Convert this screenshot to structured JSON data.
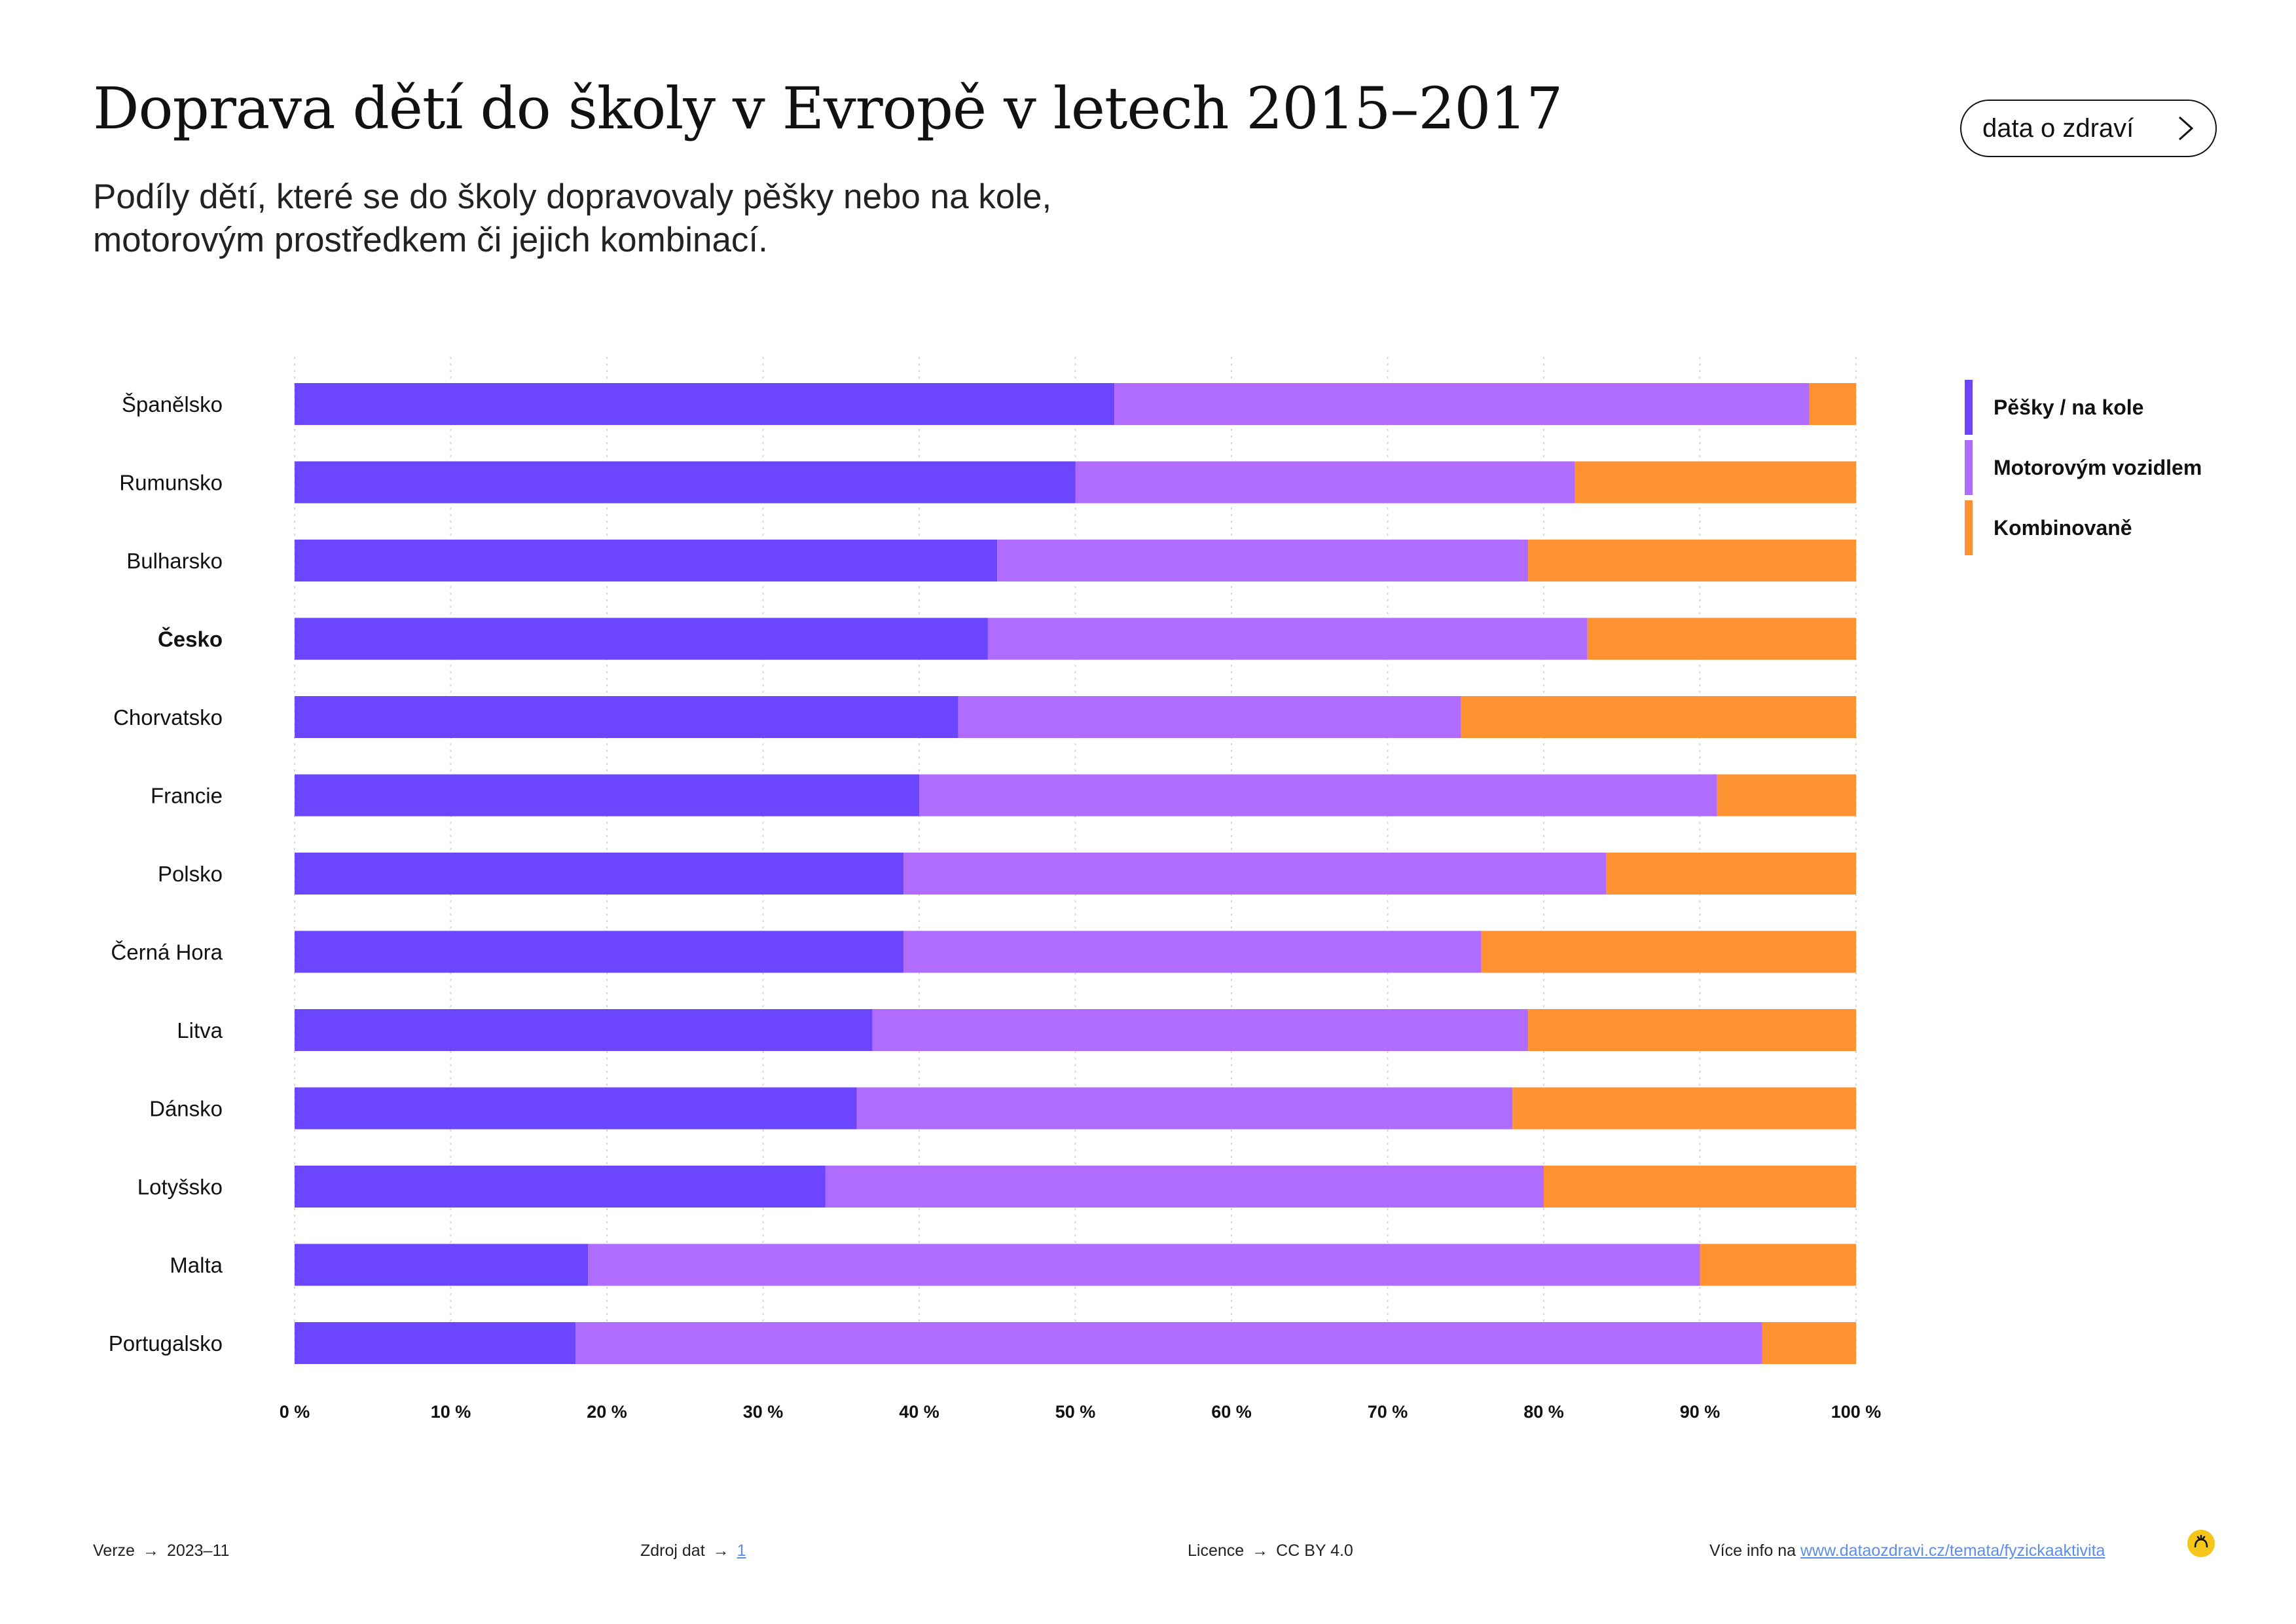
{
  "header": {
    "title": "Doprava dětí do školy v Evropě v letech 2015–2017",
    "subtitle_lines": [
      "Podíly dětí, které se do školy dopravovaly pěšky nebo na kole,",
      "motorovým prostředkem či jejich kombinací."
    ],
    "nav_button_label": "data o zdraví",
    "nav_icon": "chevron-right-icon"
  },
  "chart_data": {
    "type": "bar",
    "orientation": "horizontal",
    "stacked": true,
    "categories": [
      "Španělsko",
      "Rumunsko",
      "Bulharsko",
      "Česko",
      "Chorvatsko",
      "Francie",
      "Polsko",
      "Černá Hora",
      "Litva",
      "Dánsko",
      "Lotyšsko",
      "Malta",
      "Portugalsko"
    ],
    "highlighted_category": "Česko",
    "series": [
      {
        "name": "Pěšky / na kole",
        "color": "#6b46fe",
        "values": [
          52.5,
          50,
          45,
          44.4,
          42.5,
          40,
          39,
          39,
          37,
          36,
          34,
          18.8,
          18
        ]
      },
      {
        "name": "Motorovým vozidlem",
        "color": "#b06cfe",
        "values": [
          44.5,
          32,
          34,
          38.4,
          32.2,
          51.1,
          45,
          37,
          42,
          42,
          46,
          71.2,
          76
        ]
      },
      {
        "name": "Kombinovaně",
        "color": "#fe9132",
        "values": [
          3,
          18,
          21,
          17.2,
          25.3,
          8.9,
          16,
          24,
          21,
          22,
          20,
          10,
          6
        ]
      }
    ],
    "xlim": [
      0,
      100
    ],
    "xticks": [
      0,
      10,
      20,
      30,
      40,
      50,
      60,
      70,
      80,
      90,
      100
    ],
    "xtick_labels": [
      "0 %",
      "10 %",
      "20 %",
      "30 %",
      "40 %",
      "50 %",
      "60 %",
      "70 %",
      "80 %",
      "90 %",
      "100 %"
    ],
    "grid": "vertical dotted",
    "legend_position": "right"
  },
  "footer": {
    "version_label": "Verze",
    "version_value": "2023–11",
    "source_label": "Zdroj dat",
    "source_value": "1",
    "license_label": "Licence",
    "license_value": "CC BY 4.0",
    "more_info_label": "Více info na",
    "more_info_link": "www.dataozdravi.cz/temata/fyzickaaktivita",
    "arrow": "→",
    "logo_icon": "brand-logo-icon",
    "logo_color": "#f5c518"
  }
}
